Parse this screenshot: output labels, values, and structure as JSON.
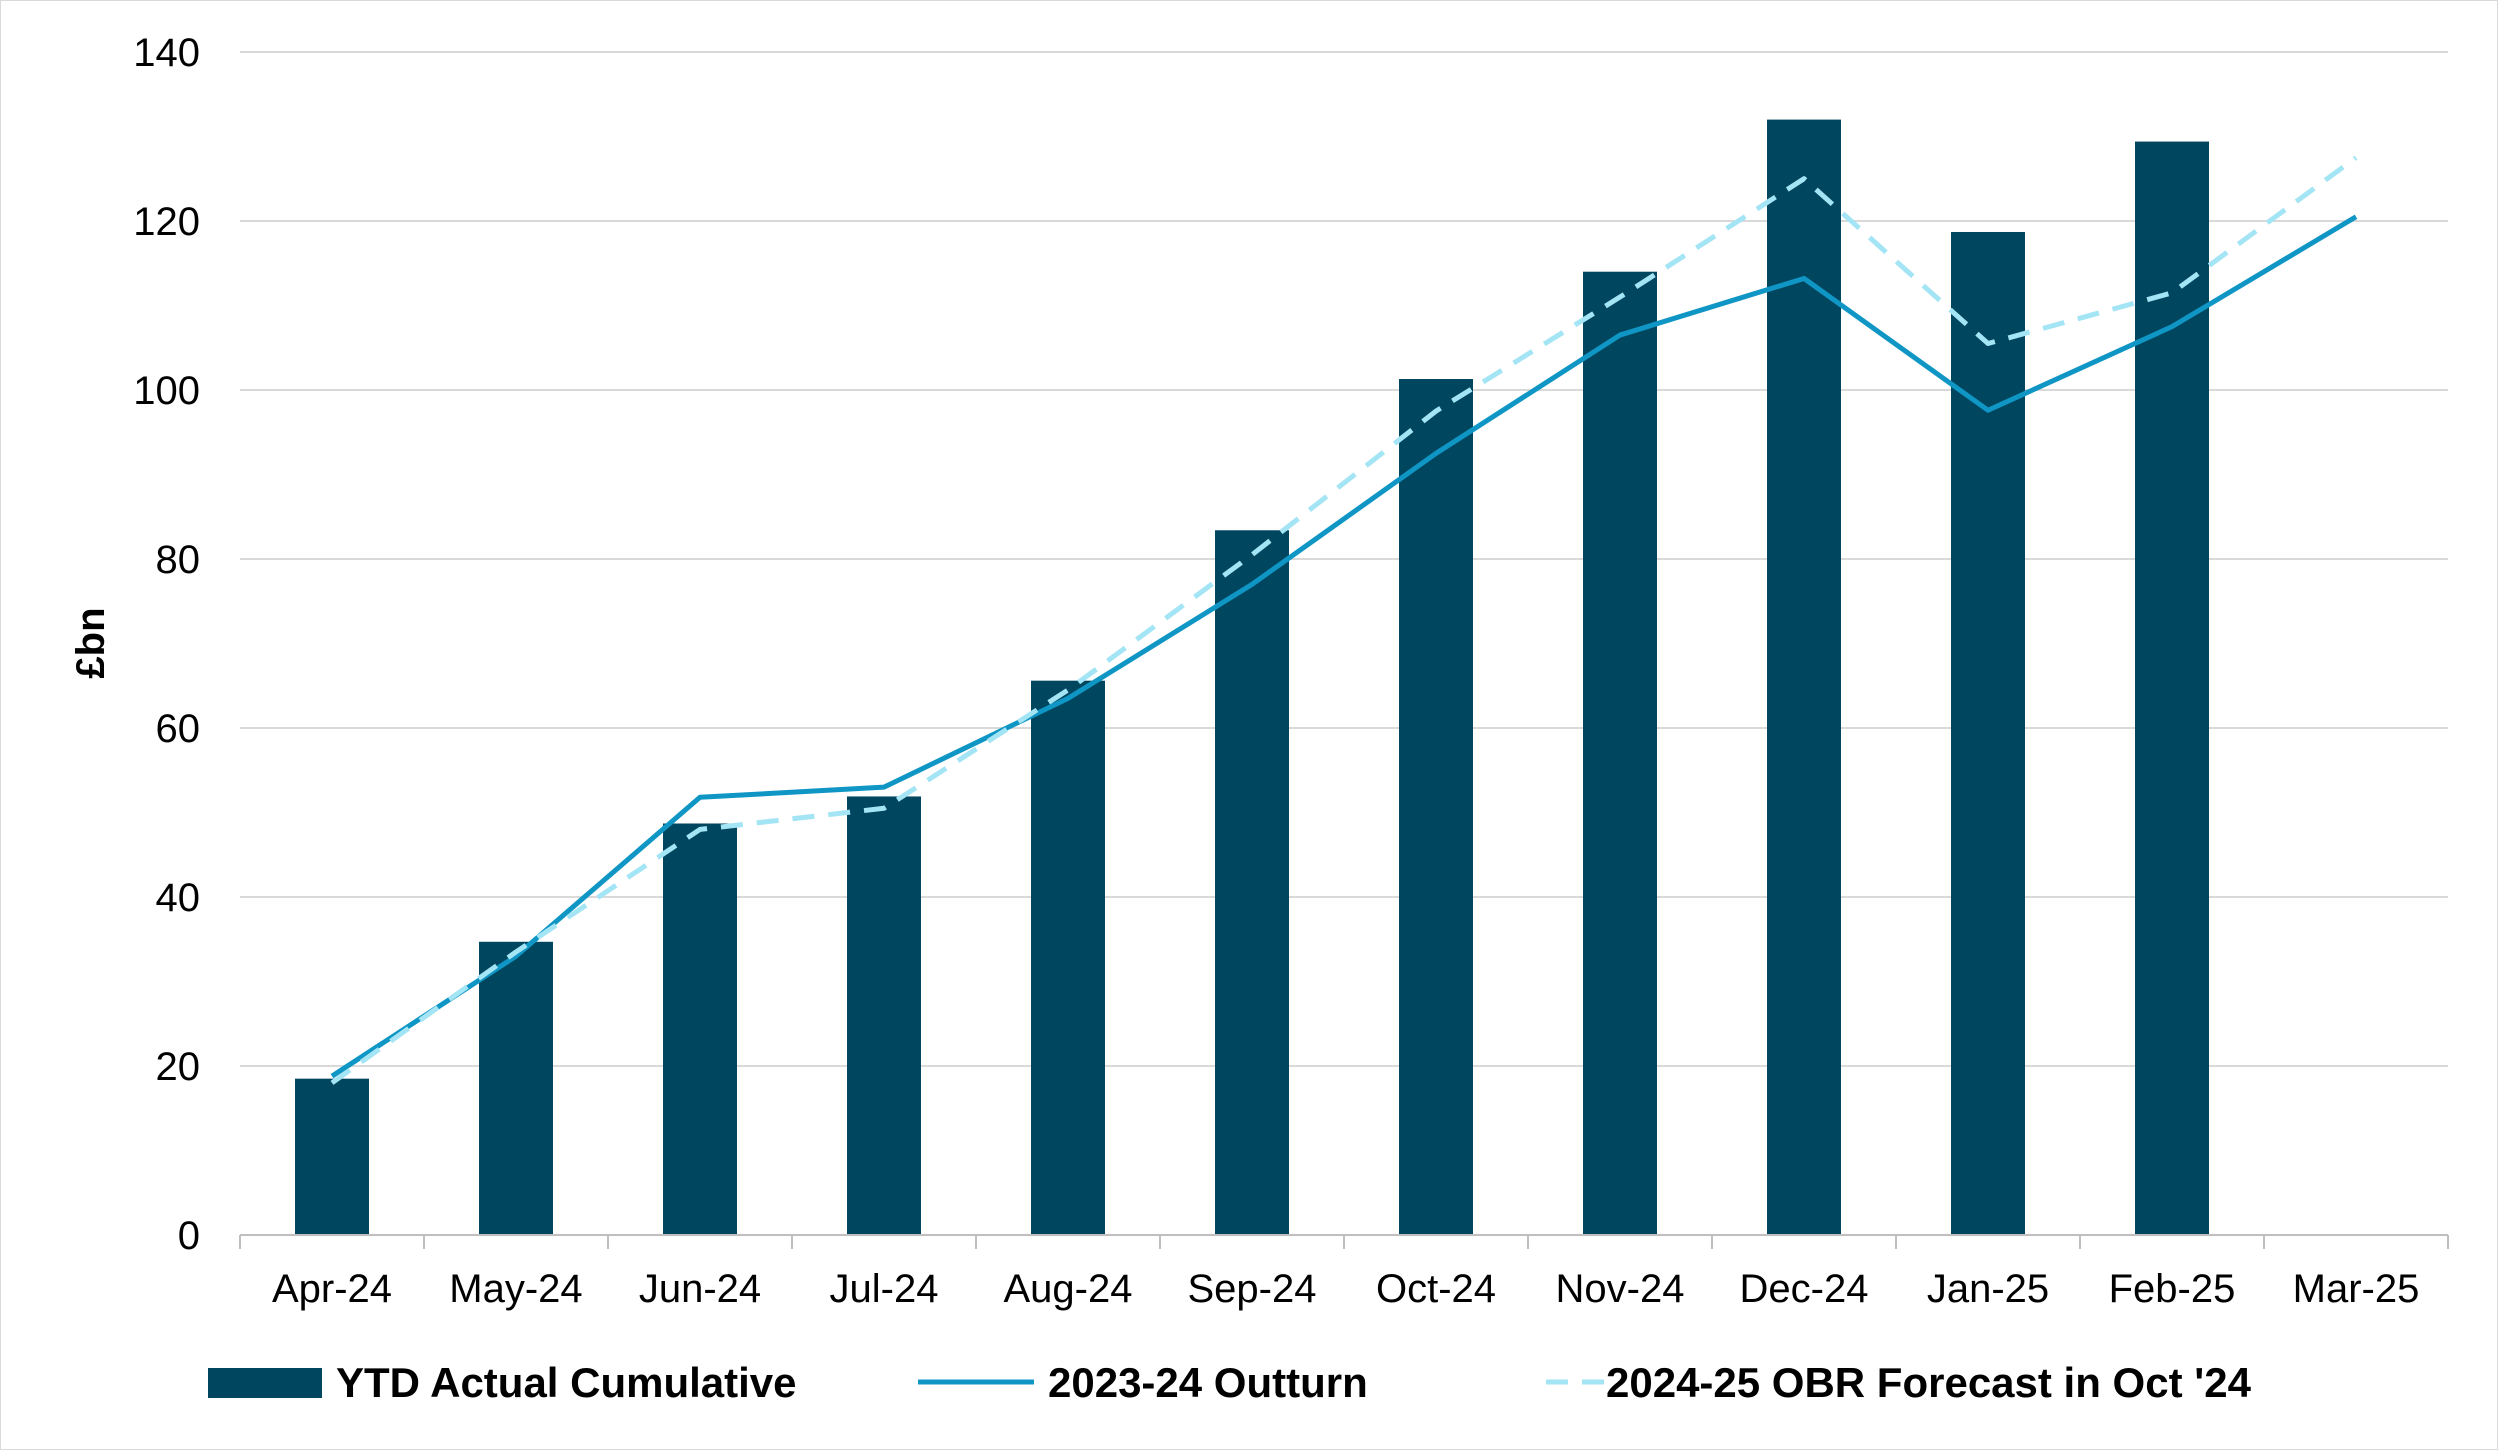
{
  "chart_data": {
    "type": "bar",
    "title": "",
    "xlabel": "",
    "ylabel": "£bn",
    "ylim": [
      0,
      140
    ],
    "yticks": [
      0,
      20,
      40,
      60,
      80,
      100,
      120,
      140
    ],
    "categories": [
      "Apr-24",
      "May-24",
      "Jun-24",
      "Jul-24",
      "Aug-24",
      "Sep-24",
      "Oct-24",
      "Nov-24",
      "Dec-24",
      "Jan-25",
      "Feb-25",
      "Mar-25"
    ],
    "grid": true,
    "legend_position": "bottom",
    "series": [
      {
        "name": "YTD Actual Cumulative",
        "type": "bar",
        "color": "#00465f",
        "values": [
          18.5,
          34.7,
          48.7,
          51.9,
          65.6,
          83.4,
          101.3,
          114.0,
          132.0,
          118.7,
          129.4,
          null
        ]
      },
      {
        "name": "2023-24 Outturn",
        "type": "line",
        "style": "solid",
        "color": "#0f96c4",
        "values": [
          18.8,
          33.0,
          51.8,
          53.0,
          63.5,
          77.0,
          92.5,
          106.5,
          113.2,
          97.6,
          107.5,
          120.5
        ]
      },
      {
        "name": "2024-25 OBR Forecast in Oct '24",
        "type": "line",
        "style": "dashed",
        "color": "#a3e4f5",
        "values": [
          18.0,
          33.5,
          48.0,
          50.5,
          64.5,
          80.5,
          97.5,
          111.0,
          125.0,
          105.5,
          111.5,
          127.5
        ]
      }
    ]
  }
}
